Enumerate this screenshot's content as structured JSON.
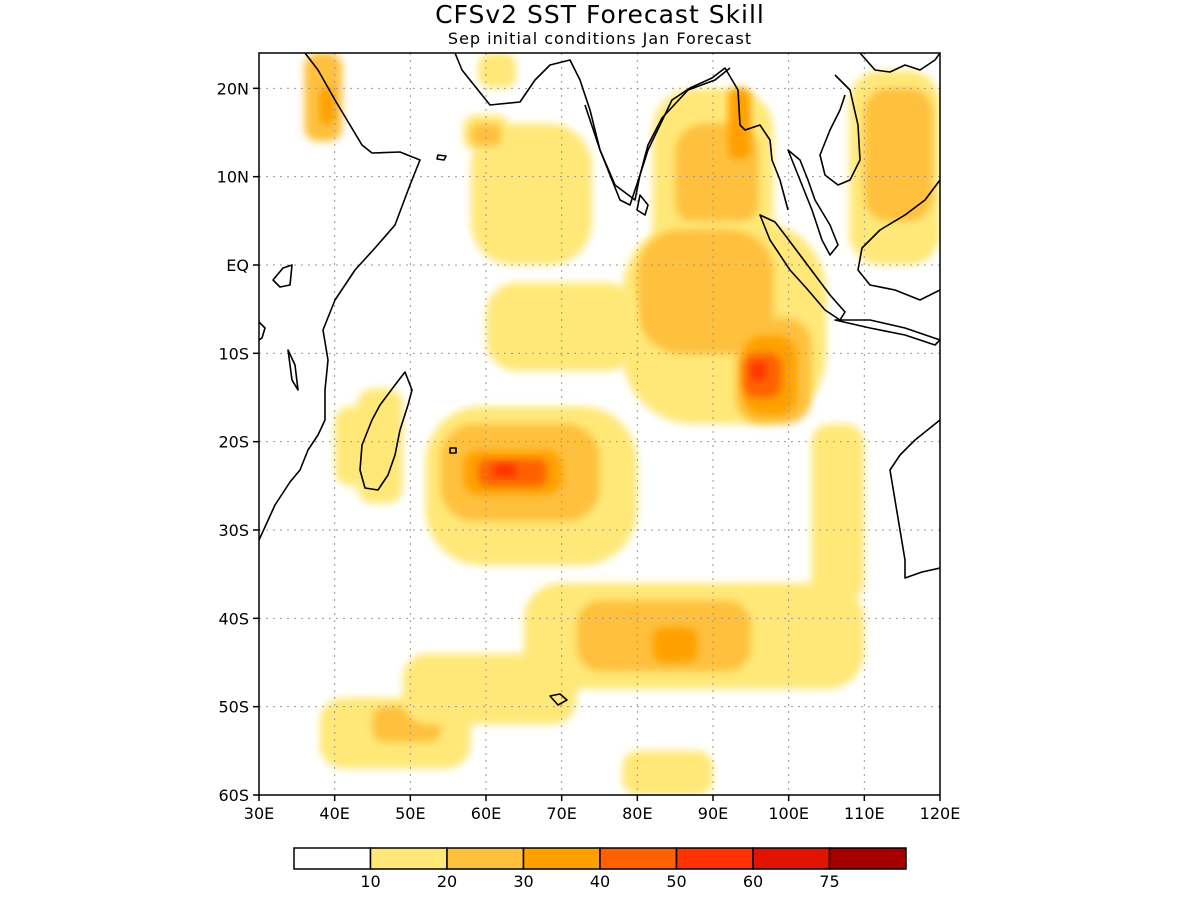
{
  "title": "CFSv2 SST Forecast Skill",
  "subtitle": "Sep initial conditions  Jan Forecast",
  "map": {
    "lon_range": [
      30,
      120
    ],
    "lat_range": [
      -60,
      24
    ],
    "grid": true,
    "lat_ticks": [
      {
        "value": 20,
        "label": "20N"
      },
      {
        "value": 10,
        "label": "10N"
      },
      {
        "value": 0,
        "label": "EQ"
      },
      {
        "value": -10,
        "label": "10S"
      },
      {
        "value": -20,
        "label": "20S"
      },
      {
        "value": -30,
        "label": "30S"
      },
      {
        "value": -40,
        "label": "40S"
      },
      {
        "value": -50,
        "label": "50S"
      },
      {
        "value": -60,
        "label": "60S"
      }
    ],
    "lon_ticks": [
      {
        "value": 30,
        "label": "30E"
      },
      {
        "value": 40,
        "label": "40E"
      },
      {
        "value": 50,
        "label": "50E"
      },
      {
        "value": 60,
        "label": "60E"
      },
      {
        "value": 70,
        "label": "70E"
      },
      {
        "value": 80,
        "label": "80E"
      },
      {
        "value": 90,
        "label": "90E"
      },
      {
        "value": 100,
        "label": "100E"
      },
      {
        "value": 110,
        "label": "110E"
      },
      {
        "value": 120,
        "label": "120E"
      }
    ]
  },
  "colorbar": {
    "colors": [
      "#ffffff",
      "#ffe878",
      "#ffc03c",
      "#ffa000",
      "#ff6000",
      "#ff3200",
      "#e11400",
      "#a50000"
    ],
    "labels": [
      "10",
      "20",
      "30",
      "40",
      "50",
      "60",
      "75"
    ]
  },
  "skill_regions": [
    {
      "name": "sw-madagascar",
      "level": 1,
      "lon": [
        43,
        49
      ],
      "lat": [
        -27,
        -14
      ]
    },
    {
      "name": "mozambique-channel",
      "level": 1,
      "lon": [
        40,
        46
      ],
      "lat": [
        -25,
        -16
      ]
    },
    {
      "name": "sc-indian-ocean",
      "level": 1,
      "lon": [
        52,
        80
      ],
      "lat": [
        -34,
        -16
      ]
    },
    {
      "name": "sc-indian-inner",
      "level": 2,
      "lon": [
        54,
        75
      ],
      "lat": [
        -29,
        -18
      ]
    },
    {
      "name": "sc-indian-core",
      "level": 3,
      "lon": [
        57,
        70
      ],
      "lat": [
        -26,
        -21
      ]
    },
    {
      "name": "sc-indian-peak",
      "level": 4,
      "lon": [
        59,
        68
      ],
      "lat": [
        -25,
        -22
      ]
    },
    {
      "name": "sc-indian-max",
      "level": 5,
      "lon": [
        61,
        64
      ],
      "lat": [
        -24,
        -22.5
      ]
    },
    {
      "name": "bay-of-bengal",
      "level": 1,
      "lon": [
        82,
        98
      ],
      "lat": [
        0,
        20
      ]
    },
    {
      "name": "bay-of-bengal-inner",
      "level": 2,
      "lon": [
        85,
        96
      ],
      "lat": [
        4,
        16
      ]
    },
    {
      "name": "andaman-coast",
      "level": 3,
      "lon": [
        92,
        95
      ],
      "lat": [
        12,
        20
      ]
    },
    {
      "name": "eq-east",
      "level": 1,
      "lon": [
        78,
        105
      ],
      "lat": [
        -18,
        5
      ]
    },
    {
      "name": "eq-east-inner",
      "level": 2,
      "lon": [
        80,
        98
      ],
      "lat": [
        -10,
        4
      ]
    },
    {
      "name": "sumatra-west",
      "level": 2,
      "lon": [
        93,
        103
      ],
      "lat": [
        -18,
        -6
      ]
    },
    {
      "name": "sumatra-west-core",
      "level": 3,
      "lon": [
        94,
        101
      ],
      "lat": [
        -17,
        -8
      ]
    },
    {
      "name": "sumatra-west-peak",
      "level": 4,
      "lon": [
        94,
        99
      ],
      "lat": [
        -15,
        -10
      ]
    },
    {
      "name": "sumatra-west-max",
      "level": 5,
      "lon": [
        95,
        97
      ],
      "lat": [
        -13,
        -11
      ]
    },
    {
      "name": "arabian-sea",
      "level": 1,
      "lon": [
        58,
        74
      ],
      "lat": [
        0,
        16
      ]
    },
    {
      "name": "central-eq",
      "level": 1,
      "lon": [
        60,
        80
      ],
      "lat": [
        -12,
        -2
      ]
    },
    {
      "name": "southern-ocean-mid",
      "level": 1,
      "lon": [
        65,
        110
      ],
      "lat": [
        -48,
        -36
      ]
    },
    {
      "name": "southern-ocean-inner",
      "level": 2,
      "lon": [
        72,
        95
      ],
      "lat": [
        -46,
        -38
      ]
    },
    {
      "name": "southern-ocean-core",
      "level": 3,
      "lon": [
        82,
        88
      ],
      "lat": [
        -45,
        -41
      ]
    },
    {
      "name": "sw-southern-ocean",
      "level": 1,
      "lon": [
        38,
        58
      ],
      "lat": [
        -57,
        -49
      ]
    },
    {
      "name": "sw-southern-ocean-inner",
      "level": 2,
      "lon": [
        45,
        54
      ],
      "lat": [
        -54,
        -50
      ]
    },
    {
      "name": "south-ocean-strip",
      "level": 1,
      "lon": [
        49,
        72
      ],
      "lat": [
        -52,
        -44
      ]
    },
    {
      "name": "far-south",
      "level": 1,
      "lon": [
        78,
        90
      ],
      "lat": [
        -60,
        -55
      ]
    },
    {
      "name": "west-australia",
      "level": 1,
      "lon": [
        103,
        110
      ],
      "lat": [
        -38,
        -18
      ]
    },
    {
      "name": "south-china-sea",
      "level": 1,
      "lon": [
        108,
        120
      ],
      "lat": [
        0,
        22
      ]
    },
    {
      "name": "south-china-sea-inner",
      "level": 2,
      "lon": [
        110,
        119
      ],
      "lat": [
        5,
        20
      ]
    },
    {
      "name": "red-sea",
      "level": 2,
      "lon": [
        36,
        41
      ],
      "lat": [
        14,
        24
      ]
    },
    {
      "name": "red-sea-core",
      "level": 3,
      "lon": [
        38,
        40
      ],
      "lat": [
        16,
        20
      ]
    },
    {
      "name": "arabian-north",
      "level": 1,
      "lon": [
        57,
        63
      ],
      "lat": [
        13,
        17
      ]
    },
    {
      "name": "arabian-north-inner",
      "level": 2,
      "lon": [
        58,
        62
      ],
      "lat": [
        13.5,
        16
      ]
    },
    {
      "name": "gulf-oman",
      "level": 1,
      "lon": [
        59,
        64
      ],
      "lat": [
        20,
        24
      ]
    }
  ]
}
